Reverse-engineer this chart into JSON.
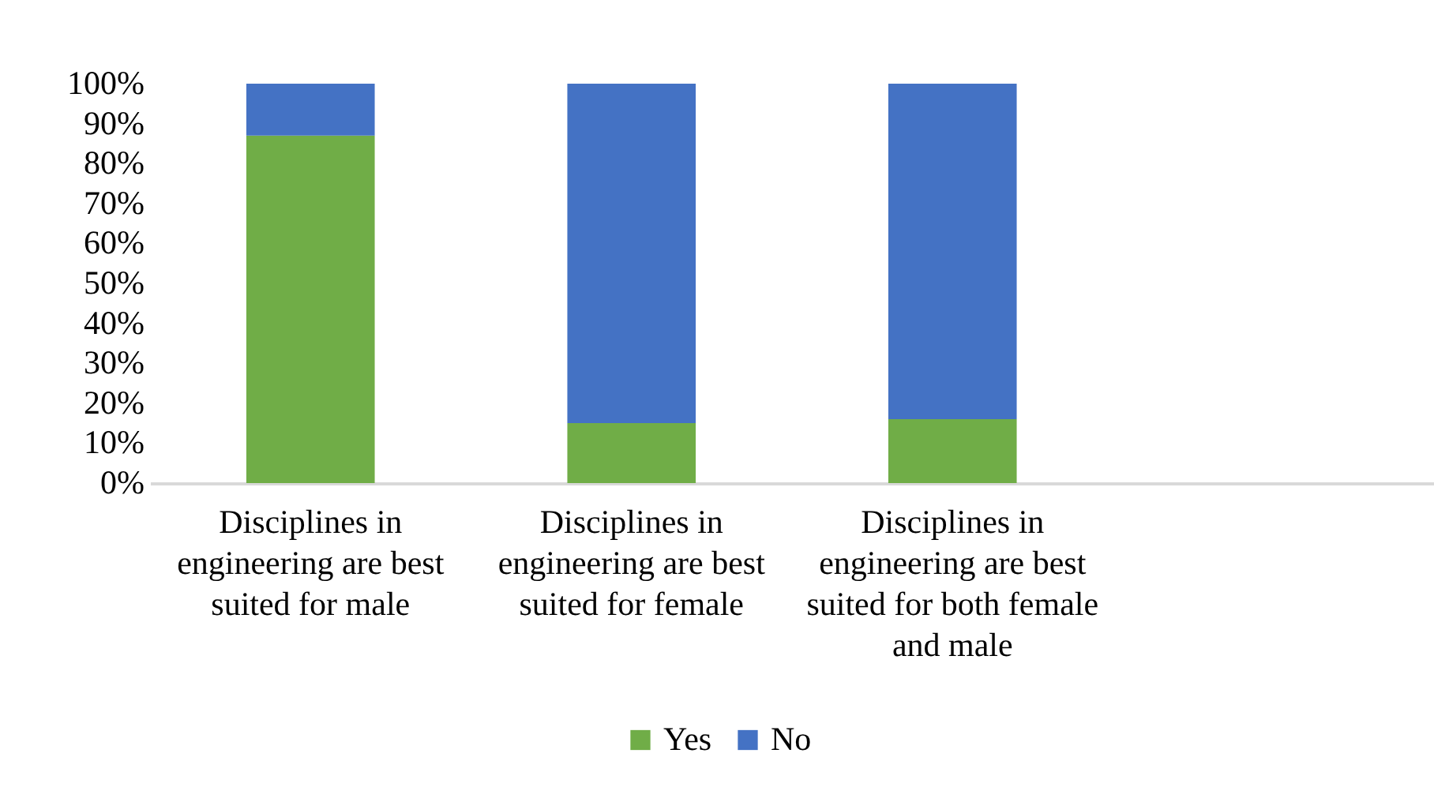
{
  "chart_data": {
    "type": "bar",
    "stacked": true,
    "categories": [
      "Disciplines in engineering are best suited for male",
      "Disciplines in engineering are best suited for female",
      "Disciplines in engineering are best suited for both female and male",
      null
    ],
    "series": [
      {
        "name": "Yes",
        "color": "#70ad47",
        "values": [
          87,
          15,
          16,
          null
        ]
      },
      {
        "name": "No",
        "color": "#4472c4",
        "values": [
          13,
          85,
          84,
          null
        ]
      }
    ],
    "ylim": [
      0,
      100
    ],
    "yticks": [
      {
        "value": 0,
        "label": "0%"
      },
      {
        "value": 10,
        "label": "10%"
      },
      {
        "value": 20,
        "label": "20%"
      },
      {
        "value": 30,
        "label": "30%"
      },
      {
        "value": 40,
        "label": "40%"
      },
      {
        "value": 50,
        "label": "50%"
      },
      {
        "value": 60,
        "label": "60%"
      },
      {
        "value": 70,
        "label": "70%"
      },
      {
        "value": 80,
        "label": "80%"
      },
      {
        "value": 90,
        "label": "90%"
      },
      {
        "value": 100,
        "label": "100%"
      }
    ],
    "grid": false,
    "legend": "bottom"
  }
}
